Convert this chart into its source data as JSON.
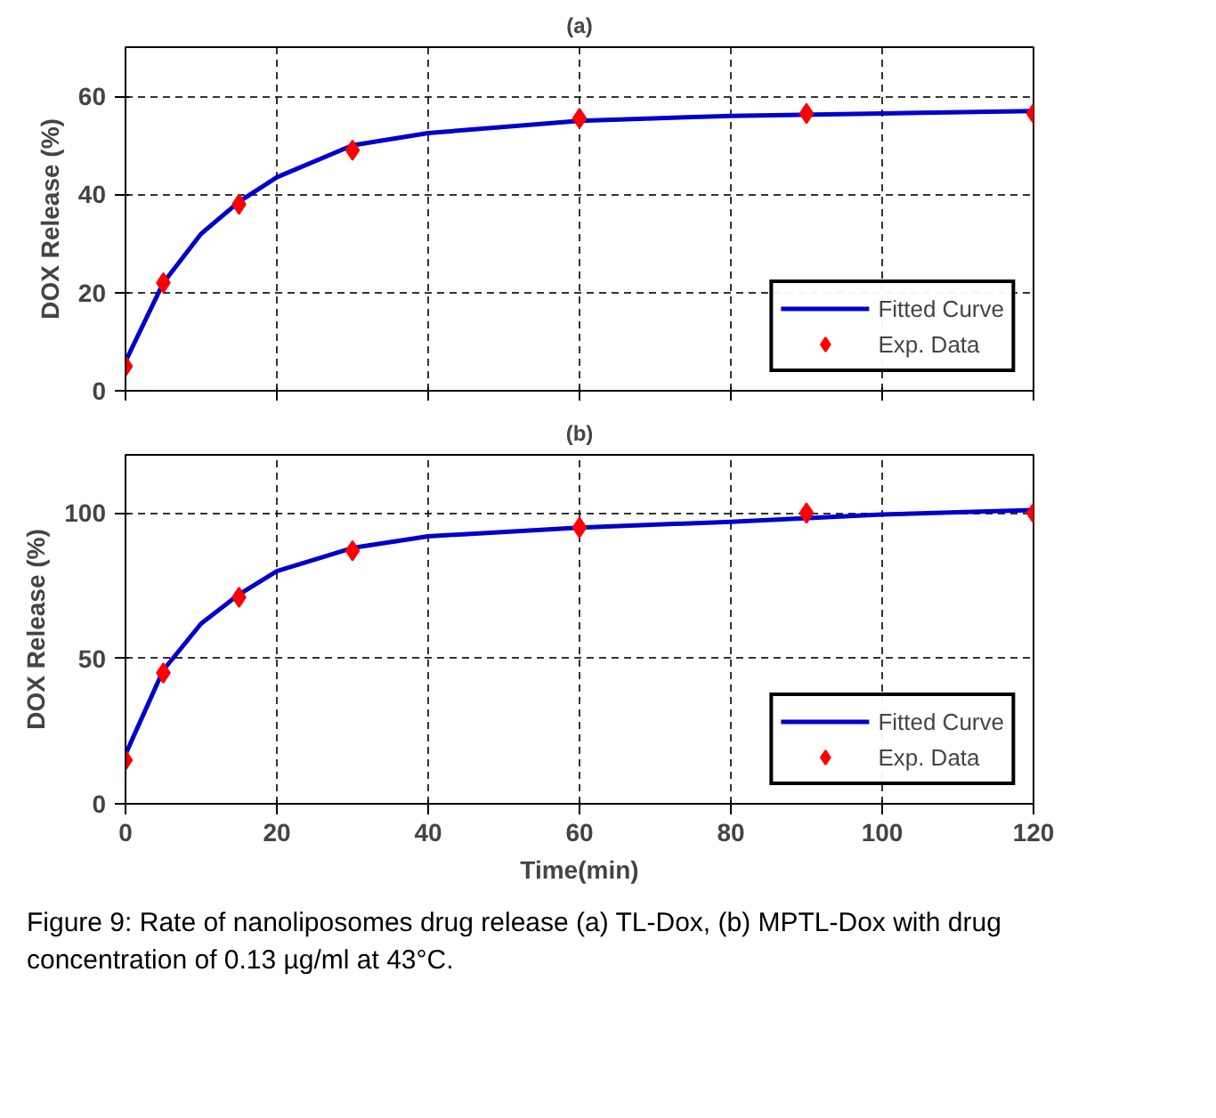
{
  "chart_data": [
    {
      "type": "line",
      "title": "(a)",
      "ylabel": "DOX Release (%)",
      "xlim": [
        0,
        120
      ],
      "ylim": [
        0,
        70
      ],
      "xticks": [
        0,
        20,
        40,
        60,
        80,
        100,
        120
      ],
      "yticks": [
        0,
        20,
        40,
        60
      ],
      "tick_labels": "y",
      "grid": true,
      "legend": "bottom right",
      "series": [
        {
          "name": "Fitted Curve",
          "color": "#0000cc",
          "x": [
            0,
            5,
            10,
            15,
            20,
            30,
            40,
            60,
            80,
            100,
            120
          ],
          "values": [
            6,
            22,
            32,
            38.5,
            43.5,
            50,
            52.5,
            55,
            56,
            56.5,
            57
          ]
        },
        {
          "name": "Exp. Data",
          "type": "scatter",
          "marker": "diamond",
          "color": "#ff0000",
          "x": [
            0,
            5,
            15,
            30,
            60,
            90,
            120
          ],
          "values": [
            5,
            22,
            38,
            49,
            55.5,
            56.5,
            56.5
          ]
        }
      ]
    },
    {
      "type": "line",
      "title": "(b)",
      "xlabel": "Time(min)",
      "ylabel": "DOX Release (%)",
      "xlim": [
        0,
        120
      ],
      "ylim": [
        0,
        120
      ],
      "xticks": [
        0,
        20,
        40,
        60,
        80,
        100,
        120
      ],
      "yticks": [
        0,
        50,
        100
      ],
      "grid": true,
      "legend": "bottom right",
      "annotations": [
        "Figure 9: Rate of nanoliposomes drug release (a) TL-Dox, (b) MPTL-Dox with drug concentration of 0.13 µg/ml at 43°C."
      ],
      "series": [
        {
          "name": "Fitted Curve",
          "color": "#0000cc",
          "x": [
            0,
            5,
            10,
            15,
            20,
            30,
            40,
            60,
            80,
            100,
            120
          ],
          "values": [
            17,
            46,
            62,
            72,
            80,
            88,
            92,
            95,
            97,
            99.5,
            101
          ]
        },
        {
          "name": "Exp. Data",
          "type": "scatter",
          "marker": "diamond",
          "color": "#ff0000",
          "x": [
            0,
            5,
            15,
            30,
            60,
            90,
            120
          ],
          "values": [
            15,
            45,
            71,
            87,
            95,
            100,
            100
          ]
        }
      ]
    }
  ]
}
